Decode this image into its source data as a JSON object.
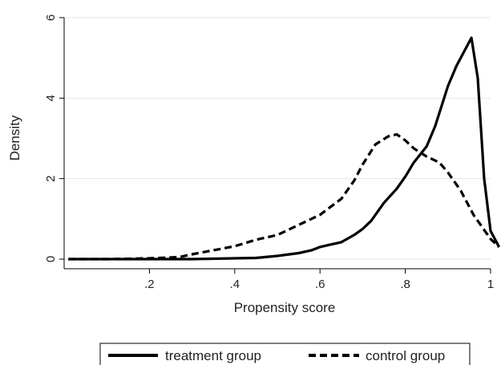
{
  "chart_data": {
    "type": "line",
    "xlabel": "Propensity score",
    "ylabel": "Density",
    "xlim": [
      0,
      1
    ],
    "ylim": [
      0,
      6
    ],
    "x_ticks": [
      0.2,
      0.4,
      0.6,
      0.8,
      1.0
    ],
    "x_tick_labels": [
      ".2",
      ".4",
      ".6",
      ".8",
      "1"
    ],
    "y_ticks": [
      0,
      2,
      4,
      6
    ],
    "y_tick_labels": [
      "0",
      "2",
      "4",
      "6"
    ],
    "grid": "horizontal",
    "legend_position": "bottom",
    "series": [
      {
        "name": "treatment group",
        "style": "solid",
        "color": "#000000",
        "x": [
          0.01,
          0.1,
          0.2,
          0.3,
          0.35,
          0.4,
          0.45,
          0.5,
          0.55,
          0.58,
          0.6,
          0.62,
          0.65,
          0.68,
          0.7,
          0.72,
          0.75,
          0.78,
          0.8,
          0.82,
          0.85,
          0.87,
          0.9,
          0.92,
          0.94,
          0.955,
          0.97,
          0.985,
          1.0,
          1.02
        ],
        "y": [
          0.0,
          0.0,
          0.0,
          0.0,
          0.01,
          0.02,
          0.03,
          0.08,
          0.15,
          0.22,
          0.3,
          0.35,
          0.42,
          0.6,
          0.75,
          0.95,
          1.4,
          1.75,
          2.05,
          2.4,
          2.8,
          3.3,
          4.3,
          4.8,
          5.2,
          5.5,
          4.5,
          2.0,
          0.7,
          0.3
        ]
      },
      {
        "name": "control group",
        "style": "dashed",
        "color": "#000000",
        "x": [
          0.01,
          0.1,
          0.2,
          0.27,
          0.3,
          0.35,
          0.4,
          0.45,
          0.5,
          0.55,
          0.6,
          0.65,
          0.68,
          0.7,
          0.73,
          0.76,
          0.78,
          0.8,
          0.82,
          0.85,
          0.88,
          0.9,
          0.93,
          0.96,
          1.0,
          1.02
        ],
        "y": [
          0.0,
          0.0,
          0.02,
          0.05,
          0.12,
          0.22,
          0.32,
          0.48,
          0.6,
          0.85,
          1.1,
          1.5,
          1.95,
          2.35,
          2.85,
          3.05,
          3.1,
          2.95,
          2.75,
          2.55,
          2.4,
          2.15,
          1.7,
          1.1,
          0.5,
          0.3
        ]
      }
    ]
  }
}
